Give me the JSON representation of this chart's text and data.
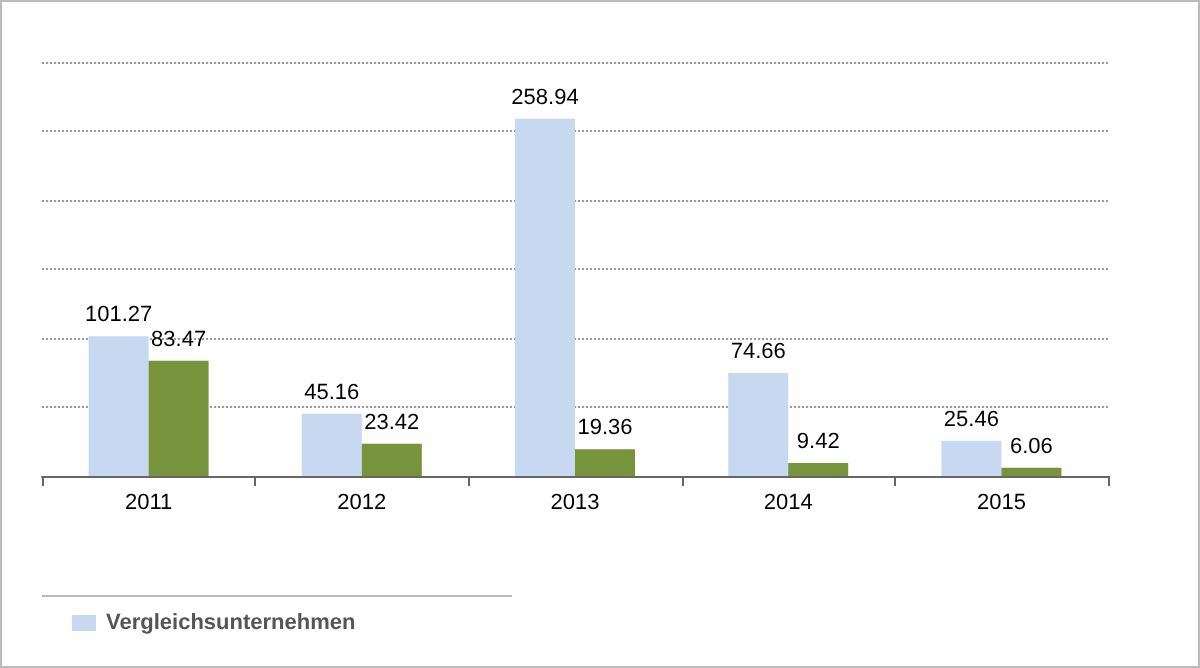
{
  "chart_data": {
    "type": "bar",
    "categories": [
      "2011",
      "2012",
      "2013",
      "2014",
      "2015"
    ],
    "series": [
      {
        "name": "Vergleichsunternehmen",
        "color": "#c6d9f1",
        "values": [
          101.27,
          45.16,
          258.94,
          74.66,
          25.46
        ]
      },
      {
        "color": "#77933c",
        "values": [
          83.47,
          23.42,
          19.36,
          9.42,
          6.06
        ]
      }
    ],
    "ylim": [
      0,
      300
    ],
    "yticks": [
      {
        "value": 0,
        "label": null
      },
      {
        "value": 50,
        "label": null
      },
      {
        "value": 100,
        "label": null
      },
      {
        "value": 150,
        "label": null
      },
      {
        "value": 200,
        "label": null
      },
      {
        "value": 250,
        "label": null
      },
      {
        "value": 300,
        "label": null
      }
    ],
    "tick_labels": "x",
    "grid": "y",
    "data_labels": true,
    "legend": "bottom left"
  }
}
